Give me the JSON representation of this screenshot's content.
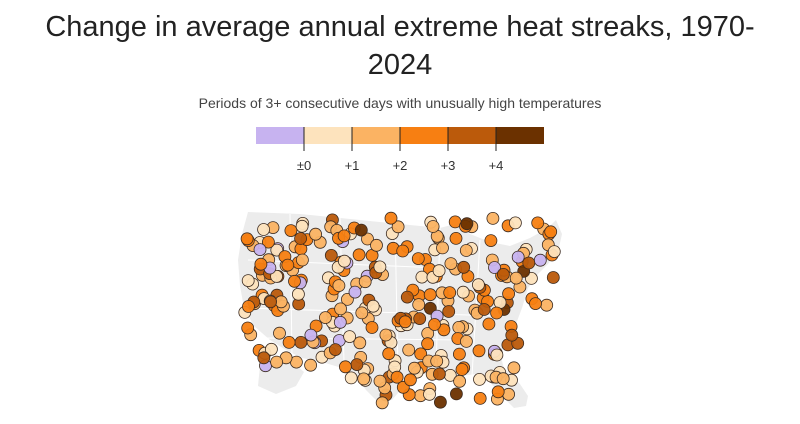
{
  "title": "Change in average annual extreme heat streaks, 1970-2024",
  "subtitle": "Periods of 3+ consecutive days with unusually high temperatures",
  "legend": {
    "bins": [
      {
        "color": "#c7b3f0"
      },
      {
        "color": "#fde3bd"
      },
      {
        "color": "#fbb363"
      },
      {
        "color": "#f77f12"
      },
      {
        "color": "#bb5a0b"
      },
      {
        "color": "#6b3100"
      }
    ],
    "tick_labels": [
      "±0",
      "+1",
      "+2",
      "+3",
      "+4"
    ]
  },
  "colors": {
    "land": "#ececec",
    "state_borders": "#ffffff",
    "dot_outline": "#3a2a20"
  }
}
